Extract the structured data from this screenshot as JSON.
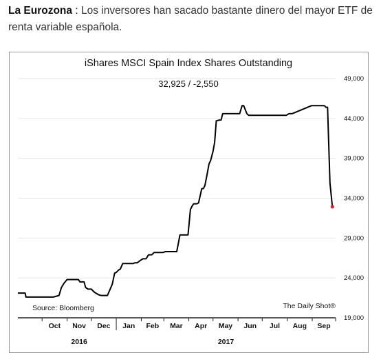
{
  "caption": {
    "bold": "La Eurozona",
    "separator": ":",
    "text": "Los inversores han sacado bastante dinero del mayor ETF de renta variable española."
  },
  "chart_data": {
    "type": "line",
    "title": "iShares MSCI Spain Index Shares Outstanding",
    "subtitle": "32,925 / -2,550",
    "source": "Source: Bloomberg",
    "credit": "The Daily Shot®",
    "ylim": [
      19000,
      49000
    ],
    "yticks": [
      "49,000",
      "44,000",
      "39,000",
      "34,000",
      "29,000",
      "24,000",
      "19,000"
    ],
    "ytick_values": [
      49000,
      44000,
      39000,
      34000,
      29000,
      24000,
      19000
    ],
    "month_labels": [
      "Oct",
      "Nov",
      "Dec",
      "Jan",
      "Feb",
      "Mar",
      "Apr",
      "May",
      "Jun",
      "Jul",
      "Aug",
      "Sep"
    ],
    "year_labels": [
      "2016",
      "2017"
    ],
    "grid": true,
    "line_color": "#000000",
    "end_marker_color": "#e02020",
    "series": [
      {
        "x": [
          "2016-09-01",
          "2016-09-10",
          "2016-09-11",
          "2016-10-01",
          "2016-10-15",
          "2016-10-22",
          "2016-10-25",
          "2016-10-28",
          "2016-11-01",
          "2016-11-15",
          "2016-11-17",
          "2016-11-22",
          "2016-11-24",
          "2016-11-27",
          "2016-12-01",
          "2016-12-05",
          "2016-12-10",
          "2016-12-13",
          "2016-12-16",
          "2016-12-21",
          "2016-12-24",
          "2016-12-27",
          "2016-12-30",
          "2017-01-01",
          "2017-01-04",
          "2017-01-06",
          "2017-01-09",
          "2017-01-12",
          "2017-01-15",
          "2017-01-22",
          "2017-01-24",
          "2017-01-27",
          "2017-01-31",
          "2017-02-03",
          "2017-02-07",
          "2017-02-10",
          "2017-02-14",
          "2017-02-17",
          "2017-02-21",
          "2017-02-24",
          "2017-02-28",
          "2017-03-03",
          "2017-03-07",
          "2017-03-10",
          "2017-03-14",
          "2017-03-17",
          "2017-03-21",
          "2017-03-24",
          "2017-03-27",
          "2017-03-31",
          "2017-04-03",
          "2017-04-05",
          "2017-04-07",
          "2017-04-11",
          "2017-04-13",
          "2017-04-17",
          "2017-04-19",
          "2017-04-21",
          "2017-04-24",
          "2017-04-26",
          "2017-04-28",
          "2017-05-01",
          "2017-05-03",
          "2017-05-05",
          "2017-05-09",
          "2017-05-11",
          "2017-05-13",
          "2017-05-16",
          "2017-05-31",
          "2017-06-03",
          "2017-06-06",
          "2017-06-08",
          "2017-06-12",
          "2017-06-14",
          "2017-06-30",
          "2017-07-20",
          "2017-07-22",
          "2017-07-31",
          "2017-08-03",
          "2017-08-07",
          "2017-08-31",
          "2017-09-10",
          "2017-09-14",
          "2017-09-16",
          "2017-09-18",
          "2017-09-20",
          "2017-09-23",
          "2017-09-26"
        ],
        "y": [
          22100,
          22100,
          21600,
          21600,
          21600,
          21800,
          22800,
          23300,
          23800,
          23800,
          23500,
          23500,
          22800,
          22600,
          22600,
          22200,
          21900,
          21800,
          21800,
          21800,
          22500,
          23200,
          24600,
          24700,
          25000,
          25100,
          25800,
          25800,
          25800,
          25800,
          25900,
          25900,
          26200,
          26400,
          26400,
          26900,
          26900,
          27200,
          27200,
          27200,
          27200,
          27300,
          27300,
          27300,
          27300,
          27300,
          29400,
          29400,
          29400,
          29400,
          32600,
          33000,
          33300,
          33300,
          33400,
          35200,
          35200,
          35600,
          37200,
          38300,
          38700,
          39900,
          41000,
          43700,
          43800,
          43800,
          44600,
          44600,
          44600,
          44600,
          45600,
          45600,
          44600,
          44400,
          44400,
          44400,
          44400,
          44400,
          44600,
          44600,
          45600,
          45600,
          45600,
          45600,
          45400,
          45400,
          35900,
          32925
        ]
      }
    ]
  }
}
